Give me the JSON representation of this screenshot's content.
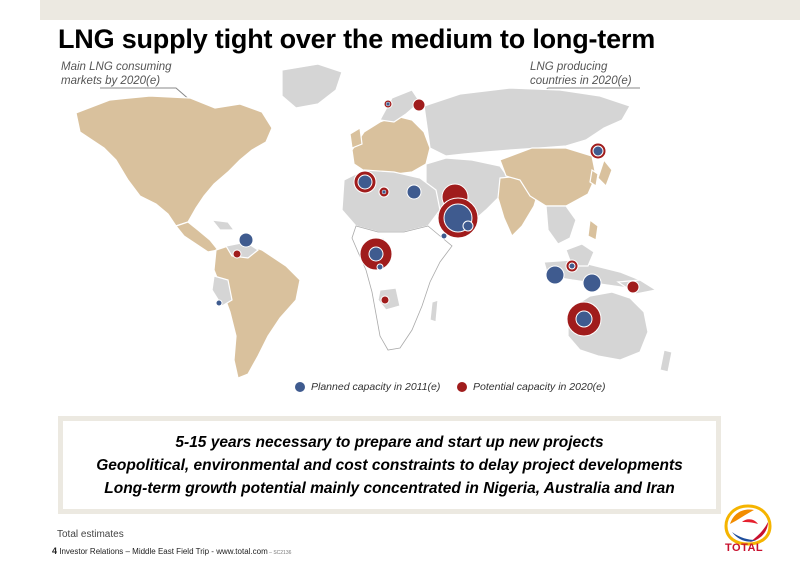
{
  "title": "LNG supply tight over the medium to long-term",
  "callouts": {
    "consuming_line1": "Main LNG consuming",
    "consuming_line2": "markets by 2020(e)",
    "producing_line1": "LNG producing",
    "producing_line2": "countries in 2020(e)"
  },
  "legend": {
    "planned": "Planned capacity in 2011(e)",
    "potential": "Potential capacity in 2020(e)"
  },
  "colors": {
    "planned": "#3f5b8f",
    "potential": "#a01c1c",
    "consuming": "#d9c19d",
    "producing": "#d5d5d5",
    "ocean": "#ffffff",
    "band": "#ece9e1"
  },
  "messages": [
    "5-15 years necessary to prepare and start up new projects",
    "Geopolitical, environmental and cost constraints to delay project developments",
    "Long-term growth potential mainly concentrated in Nigeria, Australia and Iran"
  ],
  "footnote": "Total estimates",
  "footer": {
    "page": "4",
    "text": " Investor Relations – Middle East Field Trip - www.total.com",
    "ref": " – SC2136"
  },
  "logo_text": "TOTAL"
}
